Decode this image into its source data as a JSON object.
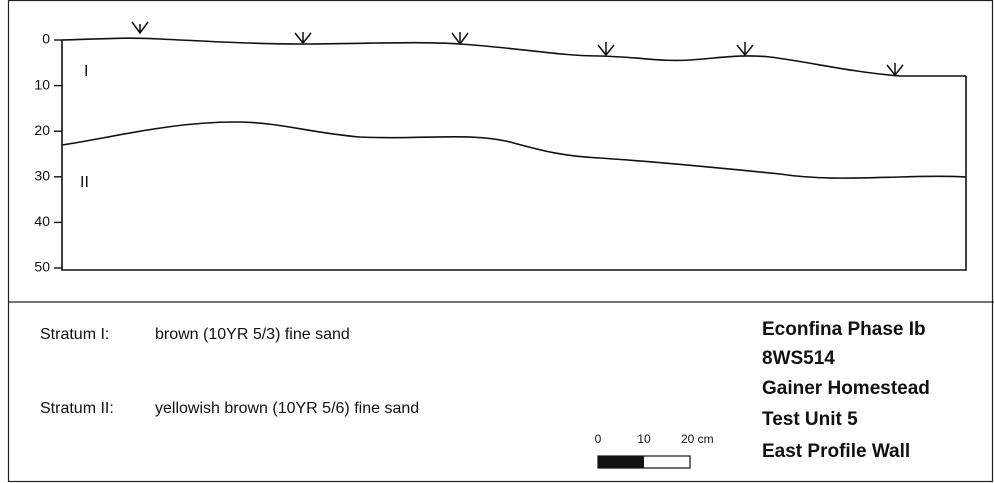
{
  "profile": {
    "depth_ticks": [
      0,
      10,
      20,
      30,
      40,
      50
    ],
    "strata_labels": [
      "I",
      "II"
    ]
  },
  "legend": [
    {
      "label": "Stratum I:",
      "description": "brown (10YR 5/3) fine sand"
    },
    {
      "label": "Stratum II:",
      "description": "yellowish brown (10YR 5/6) fine sand"
    }
  ],
  "title_block": [
    "Econfina Phase Ib",
    "8WS514",
    "Gainer Homestead",
    "Test Unit 5",
    "East Profile Wall"
  ],
  "scale_bar": {
    "labels": [
      "0",
      "10",
      "20 cm"
    ]
  }
}
